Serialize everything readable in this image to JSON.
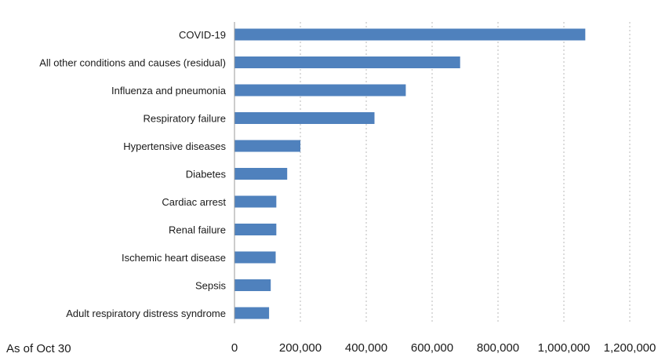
{
  "chart_data": {
    "type": "bar",
    "orientation": "horizontal",
    "categories": [
      "COVID-19",
      "All other conditions and causes (residual)",
      "Influenza and pneumonia",
      "Respiratory failure",
      "Hypertensive diseases",
      "Diabetes",
      "Cardiac arrest",
      "Renal failure",
      "Ischemic heart disease",
      "Sepsis",
      "Adult respiratory distress syndrome"
    ],
    "values": [
      1065000,
      685000,
      520000,
      425000,
      200000,
      160000,
      127000,
      127000,
      125000,
      110000,
      105000
    ],
    "xlim": [
      0,
      1200000
    ],
    "xticks": [
      0,
      200000,
      400000,
      600000,
      800000,
      1000000,
      1200000
    ],
    "xtick_labels": [
      "0",
      "200,000",
      "400,000",
      "600,000",
      "800,000",
      "1,000,000",
      "1,200,000"
    ],
    "grid": "vertical dotted",
    "legend": "none",
    "bar_color": "#4f81bd",
    "note": "As of Oct 30"
  }
}
